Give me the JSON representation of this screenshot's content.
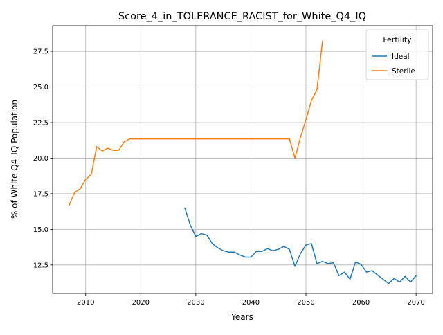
{
  "chart_data": {
    "type": "line",
    "title": "Score_4_in_TOLERANCE_RACIST_for_White_Q4_IQ",
    "xlabel": "Years",
    "ylabel": "% of White Q4_IQ Population",
    "xlim": [
      2004,
      2073
    ],
    "ylim": [
      10.5,
      29.3
    ],
    "xticks": [
      2010,
      2020,
      2030,
      2040,
      2050,
      2060,
      2070
    ],
    "yticks": [
      12.5,
      15.0,
      17.5,
      20.0,
      22.5,
      25.0,
      27.5
    ],
    "ytick_labels": [
      "12.5",
      "15.0",
      "17.5",
      "20.0",
      "22.5",
      "25.0",
      "27.5"
    ],
    "grid": true,
    "legend": {
      "title": "Fertility",
      "position": "top-right"
    },
    "series": [
      {
        "name": "Ideal",
        "color": "#1f77b4",
        "x": [
          2028,
          2029,
          2030,
          2031,
          2032,
          2033,
          2034,
          2035,
          2036,
          2037,
          2038,
          2039,
          2040,
          2041,
          2042,
          2043,
          2044,
          2045,
          2046,
          2047,
          2048,
          2049,
          2050,
          2051,
          2052,
          2053,
          2054,
          2055,
          2056,
          2057,
          2058,
          2059,
          2060,
          2061,
          2062,
          2063,
          2064,
          2065,
          2066,
          2067,
          2068,
          2069,
          2070
        ],
        "y": [
          16.5,
          15.3,
          14.5,
          14.7,
          14.6,
          14.0,
          13.7,
          13.5,
          13.4,
          13.4,
          13.2,
          13.05,
          13.05,
          13.45,
          13.45,
          13.65,
          13.5,
          13.6,
          13.8,
          13.6,
          12.4,
          13.3,
          13.9,
          14.0,
          12.6,
          12.75,
          12.6,
          12.65,
          11.75,
          12.0,
          11.5,
          12.7,
          12.55,
          12.0,
          12.1,
          11.8,
          11.5,
          11.2,
          11.55,
          11.3,
          11.7,
          11.3,
          11.75
        ]
      },
      {
        "name": "Sterile",
        "color": "#ff7f0e",
        "x": [
          2007,
          2008,
          2009,
          2010,
          2011,
          2012,
          2013,
          2014,
          2015,
          2016,
          2017,
          2018,
          2019,
          2020,
          2021,
          2022,
          2023,
          2024,
          2025,
          2026,
          2027,
          2028,
          2029,
          2030,
          2031,
          2032,
          2033,
          2034,
          2035,
          2036,
          2037,
          2038,
          2039,
          2040,
          2041,
          2042,
          2043,
          2044,
          2045,
          2046,
          2047,
          2048,
          2049,
          2050,
          2051,
          2052,
          2053
        ],
        "y": [
          16.7,
          17.6,
          17.85,
          18.5,
          18.85,
          20.8,
          20.5,
          20.7,
          20.55,
          20.55,
          21.15,
          21.35,
          21.35,
          21.35,
          21.35,
          21.35,
          21.35,
          21.35,
          21.35,
          21.35,
          21.35,
          21.35,
          21.35,
          21.35,
          21.35,
          21.35,
          21.35,
          21.35,
          21.35,
          21.35,
          21.35,
          21.35,
          21.35,
          21.35,
          21.35,
          21.35,
          21.35,
          21.35,
          21.35,
          21.35,
          21.35,
          20.0,
          21.45,
          22.7,
          24.05,
          24.8,
          28.2
        ]
      }
    ]
  }
}
